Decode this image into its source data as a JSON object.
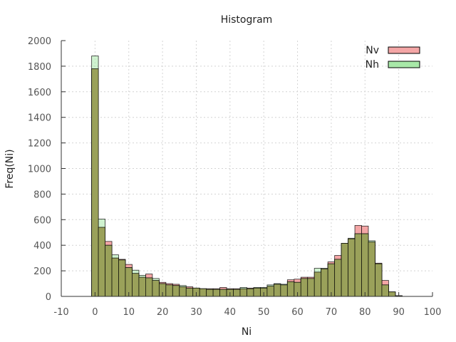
{
  "chart_data": {
    "type": "bar",
    "title": "Histogram",
    "xlabel": "Ni",
    "ylabel": "Freq(Ni)",
    "xlim": [
      -10,
      100
    ],
    "ylim": [
      0,
      2000
    ],
    "xticks": [
      "-10",
      "0",
      "10",
      "20",
      "30",
      "40",
      "50",
      "60",
      "70",
      "80",
      "90",
      "100"
    ],
    "yticks": [
      "0",
      "200",
      "400",
      "600",
      "800",
      "1000",
      "1200",
      "1400",
      "1600",
      "1800",
      "2000"
    ],
    "grid": true,
    "legend_position": "top-right",
    "bin_width": 2,
    "x": [
      0,
      2,
      4,
      6,
      8,
      10,
      12,
      14,
      16,
      18,
      20,
      22,
      24,
      26,
      28,
      30,
      32,
      34,
      36,
      38,
      40,
      42,
      44,
      46,
      48,
      50,
      52,
      54,
      56,
      58,
      60,
      62,
      64,
      66,
      68,
      70,
      72,
      74,
      76,
      78,
      80,
      82,
      84,
      86,
      88,
      90
    ],
    "series": [
      {
        "name": "Nv",
        "color": "#f4a6a6",
        "values": [
          1780,
          540,
          430,
          300,
          290,
          250,
          180,
          150,
          175,
          125,
          110,
          100,
          95,
          75,
          75,
          65,
          60,
          60,
          60,
          70,
          60,
          60,
          60,
          65,
          65,
          65,
          80,
          95,
          90,
          130,
          135,
          150,
          150,
          190,
          215,
          270,
          320,
          415,
          450,
          555,
          550,
          425,
          260,
          125,
          35,
          5
        ]
      },
      {
        "name": "Nh",
        "color": "#a8e8a8",
        "values": [
          1880,
          605,
          400,
          325,
          285,
          225,
          205,
          165,
          145,
          140,
          100,
          90,
          85,
          85,
          65,
          65,
          60,
          55,
          55,
          55,
          55,
          55,
          70,
          60,
          70,
          70,
          90,
          100,
          95,
          115,
          110,
          140,
          140,
          220,
          220,
          255,
          290,
          415,
          455,
          490,
          490,
          435,
          255,
          90,
          35,
          5
        ]
      }
    ]
  }
}
